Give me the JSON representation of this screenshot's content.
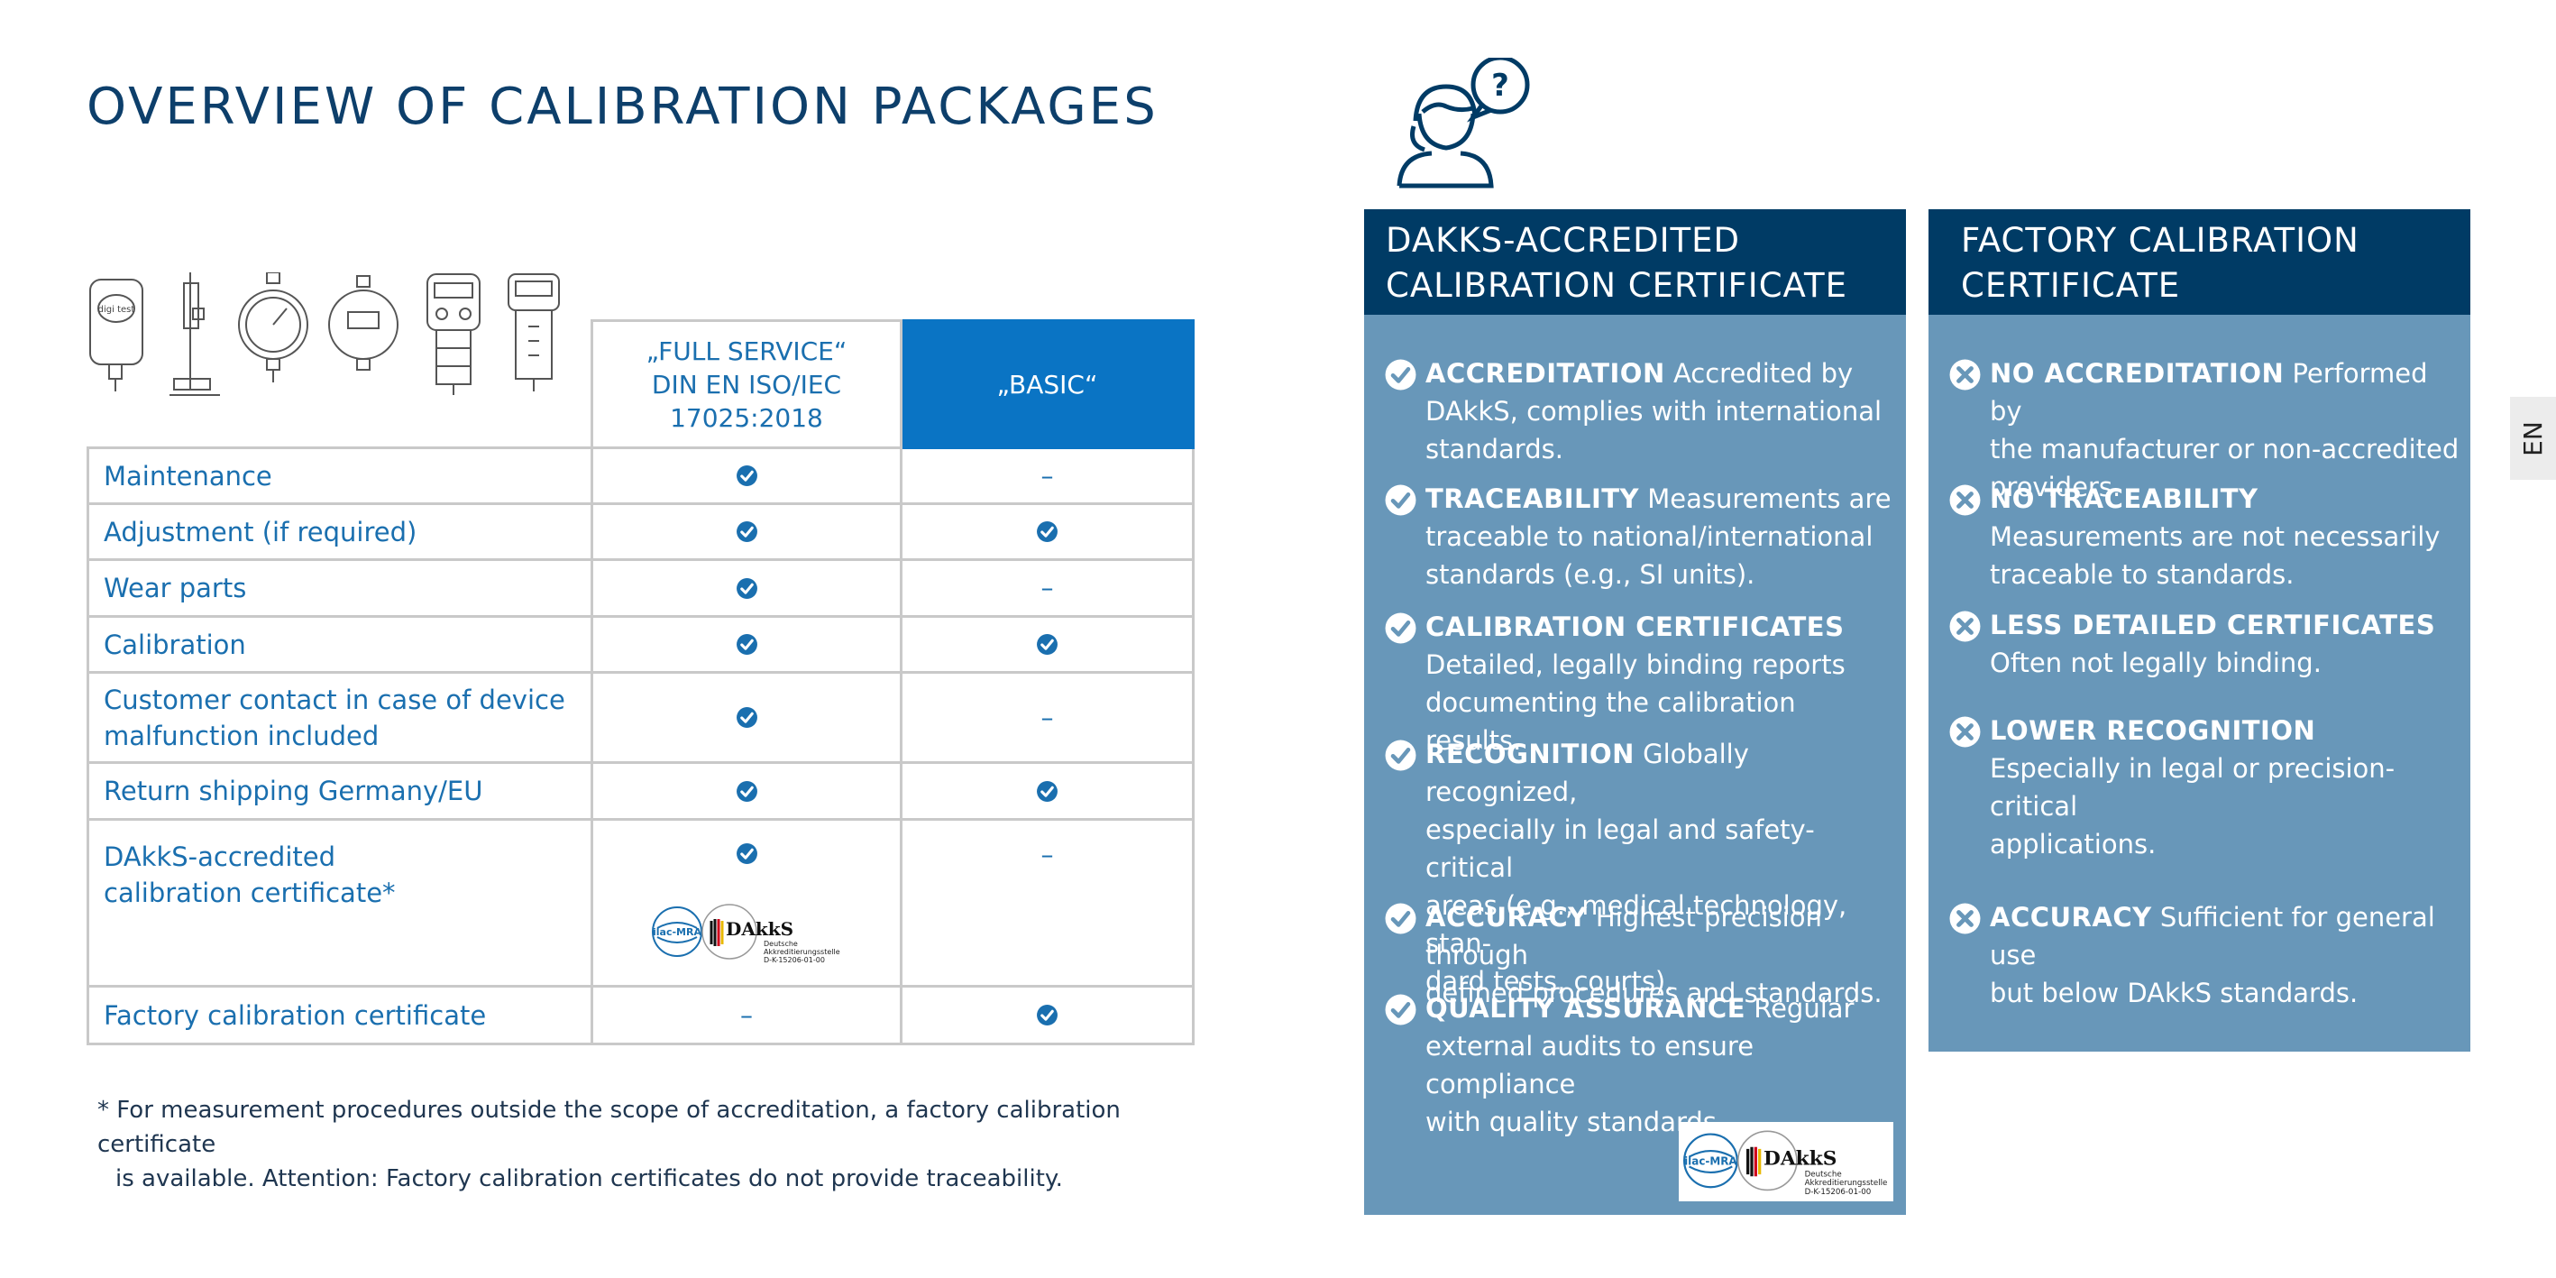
{
  "page": {
    "title": "OVERVIEW OF CALIBRATION PACKAGES",
    "language_tab": "EN"
  },
  "devices": {
    "icons": [
      "digi-test-device-icon",
      "stand-gauge-icon",
      "analog-gauge-icon",
      "digital-gauge-icon",
      "handheld-durometer-icon",
      "digital-durometer-icon"
    ],
    "brand_text": "digi test"
  },
  "table": {
    "columns": [
      "„FULL SERVICE“ DIN EN ISO/IEC 17025:2018",
      "„BASIC“"
    ],
    "col_full_lines": [
      "„FULL SERVICE“",
      "DIN EN ISO/IEC",
      "17025:2018"
    ],
    "col_basic": "„BASIC“",
    "rows": [
      {
        "label": "Maintenance",
        "full": "check",
        "basic": "dash"
      },
      {
        "label": "Adjustment (if required)",
        "full": "check",
        "basic": "check"
      },
      {
        "label": "Wear parts",
        "full": "check",
        "basic": "dash"
      },
      {
        "label": "Calibration",
        "full": "check",
        "basic": "check"
      },
      {
        "label": "Customer contact in case of device malfunction included",
        "full": "check",
        "basic": "dash"
      },
      {
        "label": "Return shipping Germany/EU",
        "full": "check",
        "basic": "check"
      },
      {
        "label": "DAkkS-accredited calibration certificate*",
        "full": "check",
        "basic": "dash"
      },
      {
        "label": "Factory calibration certificate",
        "full": "dash",
        "basic": "check"
      }
    ],
    "row_label_lines": {
      "customer": [
        "Customer contact in case of device",
        "malfunction included"
      ],
      "dakks": [
        "DAkkS-accredited",
        "calibration certificate*"
      ]
    },
    "dash_symbol": "–"
  },
  "logos": {
    "ilac_text": "ilac-MRA",
    "dakks_name": "DAkkS",
    "dakks_sub1": "Deutsche",
    "dakks_sub2": "Akkreditierungsstelle",
    "dakks_id": "D-K-15206-01-00"
  },
  "footnote": {
    "line1": "* For measurement procedures outside the scope of accreditation, a factory calibration certificate",
    "line2": "is available. Attention: Factory calibration certificates do not provide traceability."
  },
  "panels": {
    "dakks": {
      "title_line1": "DAKKS-ACCREDITED",
      "title_line2": "CALIBRATION CERTIFICATE",
      "items": [
        {
          "bold": "ACCREDITATION",
          "lines": [
            "Accredited by",
            "DAkkS, complies with international",
            "standards."
          ]
        },
        {
          "bold": "TRACEABILITY",
          "lines": [
            "Measurements are",
            "traceable to national/international",
            "standards (e.g., SI units)."
          ]
        },
        {
          "bold": "CALIBRATION CERTIFICATES",
          "lines": [
            "",
            "Detailed, legally binding reports",
            "documenting the calibration results."
          ]
        },
        {
          "bold": "RECOGNITION",
          "lines": [
            "Globally recognized,",
            "especially in legal and safety-critical",
            "areas (e.g., medical technology, stan-",
            "dard tests, courts)."
          ]
        },
        {
          "bold": "ACCURACY",
          "lines": [
            "Highest precision through",
            "defined procedures and standards."
          ]
        },
        {
          "bold": "QUALITY ASSURANCE",
          "lines": [
            "Regular",
            "external audits to ensure compliance",
            "with quality standards."
          ]
        }
      ]
    },
    "factory": {
      "title_line1": "FACTORY CALIBRATION",
      "title_line2": "CERTIFICATE",
      "items": [
        {
          "bold": "NO ACCREDITATION",
          "lines": [
            "Performed by",
            "the manufacturer or non-accredited",
            "providers."
          ]
        },
        {
          "bold": "NO TRACEABILITY",
          "lines": [
            "",
            "Measurements are not necessarily",
            "traceable to standards."
          ]
        },
        {
          "bold": "LESS DETAILED CERTIFICATES",
          "lines": [
            "",
            "Often not legally binding."
          ]
        },
        {
          "bold": "LOWER RECOGNITION",
          "lines": [
            "",
            "Especially in legal or precision-critical",
            "applications."
          ]
        },
        {
          "bold": "ACCURACY",
          "lines": [
            "Sufficient for general use",
            "but below DAkkS standards."
          ]
        }
      ]
    }
  },
  "colors": {
    "navy": "#003b65",
    "panel": "#6897b9",
    "accent": "#0a74c4",
    "text_blue": "#1a6faf"
  }
}
